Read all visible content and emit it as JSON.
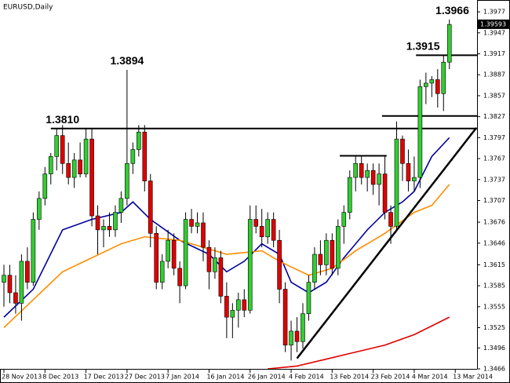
{
  "chart_data": {
    "type": "candlestick",
    "title": "EURUSD,Daily",
    "up_color": "#32cd32",
    "down_color": "#e00000",
    "wick_color": "#000000",
    "open": [
      1.359,
      1.36,
      1.3575,
      1.356,
      1.362,
      1.359,
      1.368,
      1.371,
      1.3745,
      1.377,
      1.38,
      1.376,
      1.374,
      1.3765,
      1.3745,
      1.3795,
      1.3685,
      1.3665,
      1.367,
      1.3665,
      1.369,
      1.371,
      1.376,
      1.378,
      1.3805,
      1.3735,
      1.366,
      1.359,
      1.362,
      1.365,
      1.361,
      1.3585,
      1.368,
      1.367,
      1.3675,
      1.364,
      1.3605,
      1.3625,
      1.357,
      1.354,
      1.355,
      1.3565,
      1.355,
      1.368,
      1.367,
      1.3655,
      1.368,
      1.365,
      1.358,
      1.35,
      1.352,
      1.3505,
      1.3545,
      1.359,
      1.363,
      1.3615,
      1.365,
      1.361,
      1.367,
      1.369,
      1.374,
      1.376,
      1.374,
      1.375,
      1.373,
      1.3745,
      1.369,
      1.367,
      1.3795,
      1.376,
      1.3735,
      1.374,
      1.387,
      1.3875,
      1.388,
      1.386,
      1.3905
    ],
    "high": [
      1.3615,
      1.3615,
      1.36,
      1.363,
      1.364,
      1.369,
      1.372,
      1.3755,
      1.3775,
      1.381,
      1.3815,
      1.379,
      1.3775,
      1.379,
      1.381,
      1.381,
      1.37,
      1.368,
      1.369,
      1.37,
      1.372,
      1.3894,
      1.379,
      1.3815,
      1.3815,
      1.3745,
      1.367,
      1.363,
      1.3665,
      1.366,
      1.362,
      1.369,
      1.3695,
      1.369,
      1.369,
      1.365,
      1.364,
      1.3635,
      1.359,
      1.356,
      1.3575,
      1.358,
      1.37,
      1.37,
      1.3695,
      1.369,
      1.369,
      1.3665,
      1.359,
      1.3535,
      1.354,
      1.356,
      1.36,
      1.364,
      1.365,
      1.366,
      1.366,
      1.368,
      1.37,
      1.375,
      1.377,
      1.377,
      1.376,
      1.376,
      1.376,
      1.377,
      1.37,
      1.382,
      1.38,
      1.378,
      1.377,
      1.388,
      1.389,
      1.3885,
      1.3895,
      1.3915,
      1.3966
    ],
    "low": [
      1.3555,
      1.356,
      1.3545,
      1.3535,
      1.358,
      1.3585,
      1.3665,
      1.37,
      1.373,
      1.375,
      1.3745,
      1.373,
      1.3725,
      1.374,
      1.374,
      1.367,
      1.363,
      1.364,
      1.3655,
      1.3655,
      1.3675,
      1.37,
      1.3745,
      1.377,
      1.372,
      1.364,
      1.358,
      1.358,
      1.361,
      1.36,
      1.356,
      1.358,
      1.366,
      1.366,
      1.362,
      1.358,
      1.3595,
      1.356,
      1.351,
      1.351,
      1.3525,
      1.354,
      1.3545,
      1.366,
      1.364,
      1.3645,
      1.364,
      1.356,
      1.349,
      1.3478,
      1.349,
      1.3495,
      1.3535,
      1.358,
      1.36,
      1.36,
      1.36,
      1.36,
      1.3645,
      1.368,
      1.372,
      1.373,
      1.372,
      1.3715,
      1.37,
      1.368,
      1.3645,
      1.3665,
      1.3735,
      1.372,
      1.372,
      1.3725,
      1.3845,
      1.3855,
      1.384,
      1.3835,
      1.3895
    ],
    "close": [
      1.36,
      1.3575,
      1.356,
      1.362,
      1.359,
      1.368,
      1.371,
      1.3745,
      1.377,
      1.38,
      1.376,
      1.374,
      1.3765,
      1.3745,
      1.3795,
      1.3685,
      1.3665,
      1.367,
      1.3665,
      1.369,
      1.371,
      1.376,
      1.378,
      1.3805,
      1.3735,
      1.366,
      1.359,
      1.362,
      1.365,
      1.361,
      1.3585,
      1.368,
      1.367,
      1.3675,
      1.364,
      1.3605,
      1.3625,
      1.357,
      1.354,
      1.355,
      1.3565,
      1.355,
      1.368,
      1.367,
      1.3655,
      1.368,
      1.365,
      1.358,
      1.35,
      1.352,
      1.3505,
      1.3545,
      1.359,
      1.363,
      1.3615,
      1.365,
      1.361,
      1.367,
      1.369,
      1.374,
      1.376,
      1.374,
      1.375,
      1.373,
      1.3745,
      1.369,
      1.367,
      1.3795,
      1.376,
      1.3735,
      1.374,
      1.387,
      1.3875,
      1.388,
      1.386,
      1.3905,
      1.3959
    ],
    "lines": [
      {
        "color": "#0000a0",
        "x": [
          0,
          5,
          10,
          15,
          20,
          22,
          25,
          30,
          35,
          38,
          41,
          44,
          47,
          49,
          52,
          55,
          58,
          62,
          65,
          68,
          70,
          73,
          76
        ],
        "values": [
          1.354,
          1.358,
          1.3665,
          1.368,
          1.369,
          1.3705,
          1.368,
          1.365,
          1.363,
          1.3605,
          1.362,
          1.3645,
          1.363,
          1.359,
          1.3575,
          1.359,
          1.3625,
          1.3665,
          1.369,
          1.3705,
          1.372,
          1.377,
          1.3797
        ]
      },
      {
        "color": "#ff8c00",
        "x": [
          0,
          10,
          15,
          20,
          24,
          30,
          38,
          44,
          47,
          52,
          56,
          60,
          65,
          70,
          73,
          76
        ],
        "values": [
          1.3525,
          1.3605,
          1.3625,
          1.3645,
          1.3655,
          1.365,
          1.363,
          1.3635,
          1.362,
          1.36,
          1.361,
          1.3635,
          1.366,
          1.369,
          1.37,
          1.373
        ]
      },
      {
        "color": "#e00000",
        "x": [
          45,
          50,
          55,
          60,
          65,
          70,
          76
        ],
        "values": [
          1.3466,
          1.347,
          1.348,
          1.349,
          1.35,
          1.3515,
          1.354
        ]
      }
    ],
    "hlines": [
      {
        "value": 1.381,
        "x": [
          8,
          81
        ]
      },
      {
        "value": 1.3771,
        "x": [
          57.3,
          65.3
        ]
      },
      {
        "value": 1.3828,
        "x": [
          64.5,
          81
        ]
      },
      {
        "value": 1.3915,
        "x": [
          70.3,
          81
        ]
      }
    ],
    "trendline": {
      "x": [
        50,
        80.6
      ],
      "values": [
        1.3481,
        1.3811
      ]
    },
    "annotations": [
      {
        "label": "1.3810",
        "value": 1.381,
        "x": 10
      },
      {
        "label": "1.3894",
        "value": 1.3894,
        "x": 21
      },
      {
        "label": "1.3915",
        "value": 1.3915,
        "x": 71.5
      },
      {
        "label": "1.3966",
        "value": 1.3966,
        "x": 76.5
      }
    ],
    "last_price": 1.39593,
    "ylim": [
      1.3466,
      1.3994
    ],
    "yticks": [
      1.3466,
      1.3496,
      1.3525,
      1.3555,
      1.3585,
      1.3615,
      1.3646,
      1.3676,
      1.3707,
      1.3737,
      1.3767,
      1.3797,
      1.3827,
      1.3857,
      1.3887,
      1.3917,
      1.3947,
      1.3977
    ],
    "xlim": [
      -0.67,
      80.72
    ],
    "xticks": [
      {
        "value": 0,
        "label": "28 Nov 2013"
      },
      {
        "value": 7,
        "label": "8 Dec 2013"
      },
      {
        "value": 14,
        "label": "17 Dec 2013"
      },
      {
        "value": 21,
        "label": "27 Dec 2013"
      },
      {
        "value": 28,
        "label": "7 Jan 2014"
      },
      {
        "value": 35,
        "label": "16 Jan 2014"
      },
      {
        "value": 42,
        "label": "26 Jan 2014"
      },
      {
        "value": 49,
        "label": "4 Feb 2014"
      },
      {
        "value": 56,
        "label": "13 Feb 2014"
      },
      {
        "value": 63,
        "label": "23 Feb 2014"
      },
      {
        "value": 70,
        "label": "4 Mar 2014"
      },
      {
        "value": 77,
        "label": "13 Mar 2014"
      }
    ]
  }
}
